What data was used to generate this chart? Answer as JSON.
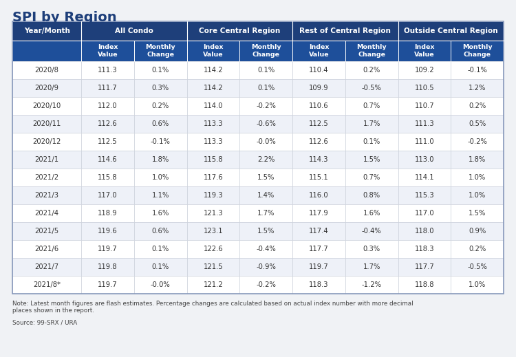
{
  "title": "SPI by Region",
  "note": "Note: Latest month figures are flash estimates. Percentage changes are calculated based on actual index number with more decimal\nplaces shown in the report.",
  "source": "Source: 99-SRX / URA",
  "header_dark": "#1e3f7a",
  "header_mid": "#1e4f9a",
  "row_bg_even": "#ffffff",
  "row_bg_odd": "#eef1f8",
  "data_text_color": "#333333",
  "rows": [
    [
      "2020/8",
      "111.3",
      "0.1%",
      "114.2",
      "0.1%",
      "110.4",
      "0.2%",
      "109.2",
      "-0.1%"
    ],
    [
      "2020/9",
      "111.7",
      "0.3%",
      "114.2",
      "0.1%",
      "109.9",
      "-0.5%",
      "110.5",
      "1.2%"
    ],
    [
      "2020/10",
      "112.0",
      "0.2%",
      "114.0",
      "-0.2%",
      "110.6",
      "0.7%",
      "110.7",
      "0.2%"
    ],
    [
      "2020/11",
      "112.6",
      "0.6%",
      "113.3",
      "-0.6%",
      "112.5",
      "1.7%",
      "111.3",
      "0.5%"
    ],
    [
      "2020/12",
      "112.5",
      "-0.1%",
      "113.3",
      "-0.0%",
      "112.6",
      "0.1%",
      "111.0",
      "-0.2%"
    ],
    [
      "2021/1",
      "114.6",
      "1.8%",
      "115.8",
      "2.2%",
      "114.3",
      "1.5%",
      "113.0",
      "1.8%"
    ],
    [
      "2021/2",
      "115.8",
      "1.0%",
      "117.6",
      "1.5%",
      "115.1",
      "0.7%",
      "114.1",
      "1.0%"
    ],
    [
      "2021/3",
      "117.0",
      "1.1%",
      "119.3",
      "1.4%",
      "116.0",
      "0.8%",
      "115.3",
      "1.0%"
    ],
    [
      "2021/4",
      "118.9",
      "1.6%",
      "121.3",
      "1.7%",
      "117.9",
      "1.6%",
      "117.0",
      "1.5%"
    ],
    [
      "2021/5",
      "119.6",
      "0.6%",
      "123.1",
      "1.5%",
      "117.4",
      "-0.4%",
      "118.0",
      "0.9%"
    ],
    [
      "2021/6",
      "119.7",
      "0.1%",
      "122.6",
      "-0.4%",
      "117.7",
      "0.3%",
      "118.3",
      "0.2%"
    ],
    [
      "2021/7",
      "119.8",
      "0.1%",
      "121.5",
      "-0.9%",
      "119.7",
      "1.7%",
      "117.7",
      "-0.5%"
    ],
    [
      "2021/8*",
      "119.7",
      "-0.0%",
      "121.2",
      "-0.2%",
      "118.3",
      "-1.2%",
      "118.8",
      "1.0%"
    ]
  ]
}
